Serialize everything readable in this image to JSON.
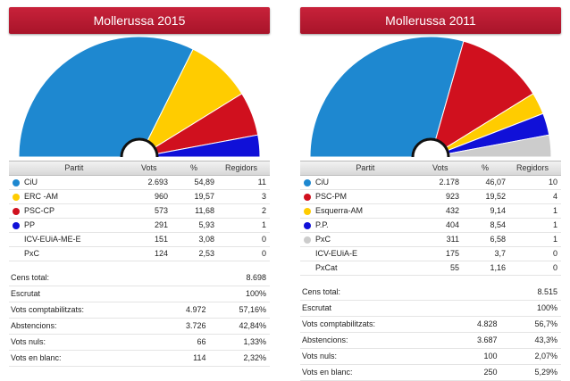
{
  "columns": {
    "partit": "Partit",
    "vots": "Vots",
    "pct": "%",
    "regidors": "Regidors"
  },
  "labels": {
    "cens": "Cens total:",
    "escrutat": "Escrutat",
    "comptabilitzats": "Vots comptabilitzats:",
    "abstencions": "Abstencions:",
    "nuls": "Vots nuls:",
    "blanc": "Vots en blanc:"
  },
  "chart_data": [
    {
      "type": "pie",
      "subtype": "hemicycle",
      "title": "Mollerussa 2015",
      "series": [
        {
          "name": "CiU",
          "votes": "2.693",
          "pct": "54,89",
          "seats": 11,
          "color": "#1e88d0"
        },
        {
          "name": "ERC -AM",
          "votes": "960",
          "pct": "19,57",
          "seats": 3,
          "color": "#ffcc00"
        },
        {
          "name": "PSC-CP",
          "votes": "573",
          "pct": "11,68",
          "seats": 2,
          "color": "#d0101e"
        },
        {
          "name": "PP",
          "votes": "291",
          "pct": "5,93",
          "seats": 1,
          "color": "#1010d8"
        },
        {
          "name": "ICV-EUiA-ME-E",
          "votes": "151",
          "pct": "3,08",
          "seats": 0,
          "color": ""
        },
        {
          "name": "PxC",
          "votes": "124",
          "pct": "2,53",
          "seats": 0,
          "color": ""
        }
      ],
      "summary": {
        "cens": "8.698",
        "escrutat": "100%",
        "comptabilitzats": [
          "4.972",
          "57,16%"
        ],
        "abstencions": [
          "3.726",
          "42,84%"
        ],
        "nuls": [
          "66",
          "1,33%"
        ],
        "blanc": [
          "114",
          "2,32%"
        ]
      }
    },
    {
      "type": "pie",
      "subtype": "hemicycle",
      "title": "Mollerussa 2011",
      "series": [
        {
          "name": "CiU",
          "votes": "2.178",
          "pct": "46,07",
          "seats": 10,
          "color": "#1e88d0"
        },
        {
          "name": "PSC-PM",
          "votes": "923",
          "pct": "19,52",
          "seats": 4,
          "color": "#d0101e"
        },
        {
          "name": "Esquerra-AM",
          "votes": "432",
          "pct": "9,14",
          "seats": 1,
          "color": "#ffcc00"
        },
        {
          "name": "P.P.",
          "votes": "404",
          "pct": "8,54",
          "seats": 1,
          "color": "#1010d8"
        },
        {
          "name": "PxC",
          "votes": "311",
          "pct": "6,58",
          "seats": 1,
          "color": "#cccccc"
        },
        {
          "name": "ICV-EUiA-E",
          "votes": "175",
          "pct": "3,7",
          "seats": 0,
          "color": ""
        },
        {
          "name": "PxCat",
          "votes": "55",
          "pct": "1,16",
          "seats": 0,
          "color": ""
        }
      ],
      "summary": {
        "cens": "8.515",
        "escrutat": "100%",
        "comptabilitzats": [
          "4.828",
          "56,7%"
        ],
        "abstencions": [
          "3.687",
          "43,3%"
        ],
        "nuls": [
          "100",
          "2,07%"
        ],
        "blanc": [
          "250",
          "5,29%"
        ]
      }
    }
  ]
}
